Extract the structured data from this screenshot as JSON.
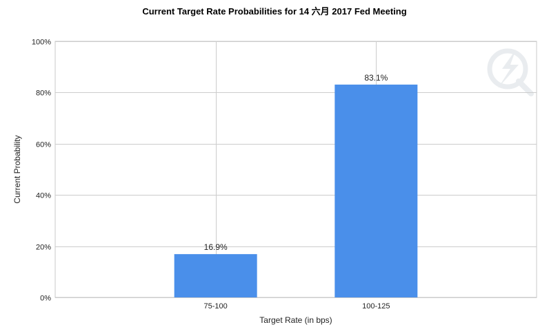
{
  "chart_data": {
    "type": "bar",
    "title": "Current Target Rate Probabilities for 14 六月 2017  Fed Meeting",
    "xlabel": "Target Rate (in bps)",
    "ylabel": "Current Probability",
    "categories": [
      "75-100",
      "100-125"
    ],
    "values": [
      16.9,
      83.1
    ],
    "data_labels": [
      "16.9%",
      "83.1%"
    ],
    "ylim": [
      0,
      100
    ],
    "yticks": [
      0,
      20,
      40,
      60,
      80,
      100
    ],
    "ytick_labels": [
      "0%",
      "20%",
      "40%",
      "60%",
      "80%",
      "100%"
    ],
    "grid": true,
    "legend": "none",
    "bar_color": "#4a8fea"
  }
}
